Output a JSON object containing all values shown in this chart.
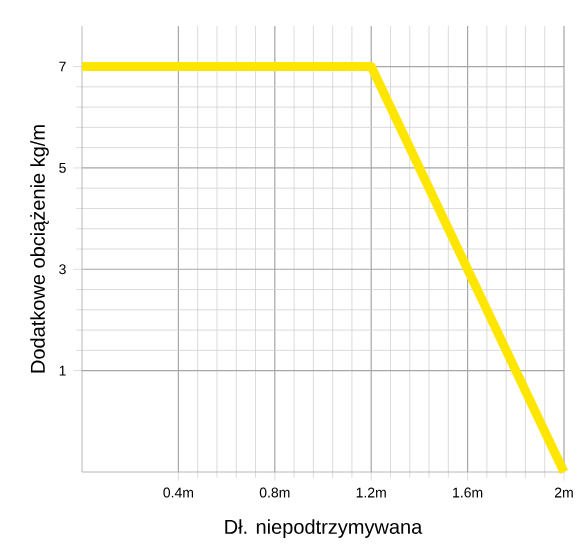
{
  "chart_data": {
    "type": "line",
    "xlabel": "Dł. niepodtrzymywana",
    "ylabel": "Dodatkowe obciążenie kg/m",
    "x": [
      0,
      1.2,
      2
    ],
    "values": [
      7,
      7,
      -1
    ],
    "color": "#ffe600",
    "xlim": [
      0,
      2
    ],
    "ylim": [
      -1,
      7.8
    ],
    "xticks": [
      {
        "value": 0.4,
        "label": "0.4m"
      },
      {
        "value": 0.8,
        "label": "0.8m"
      },
      {
        "value": 1.2,
        "label": "1.2m"
      },
      {
        "value": 1.6,
        "label": "1.6m"
      },
      {
        "value": 2,
        "label": "2m"
      }
    ],
    "yticks": [
      1,
      3,
      5,
      7
    ],
    "grid": true,
    "marker": "none",
    "line_style": "solid"
  }
}
